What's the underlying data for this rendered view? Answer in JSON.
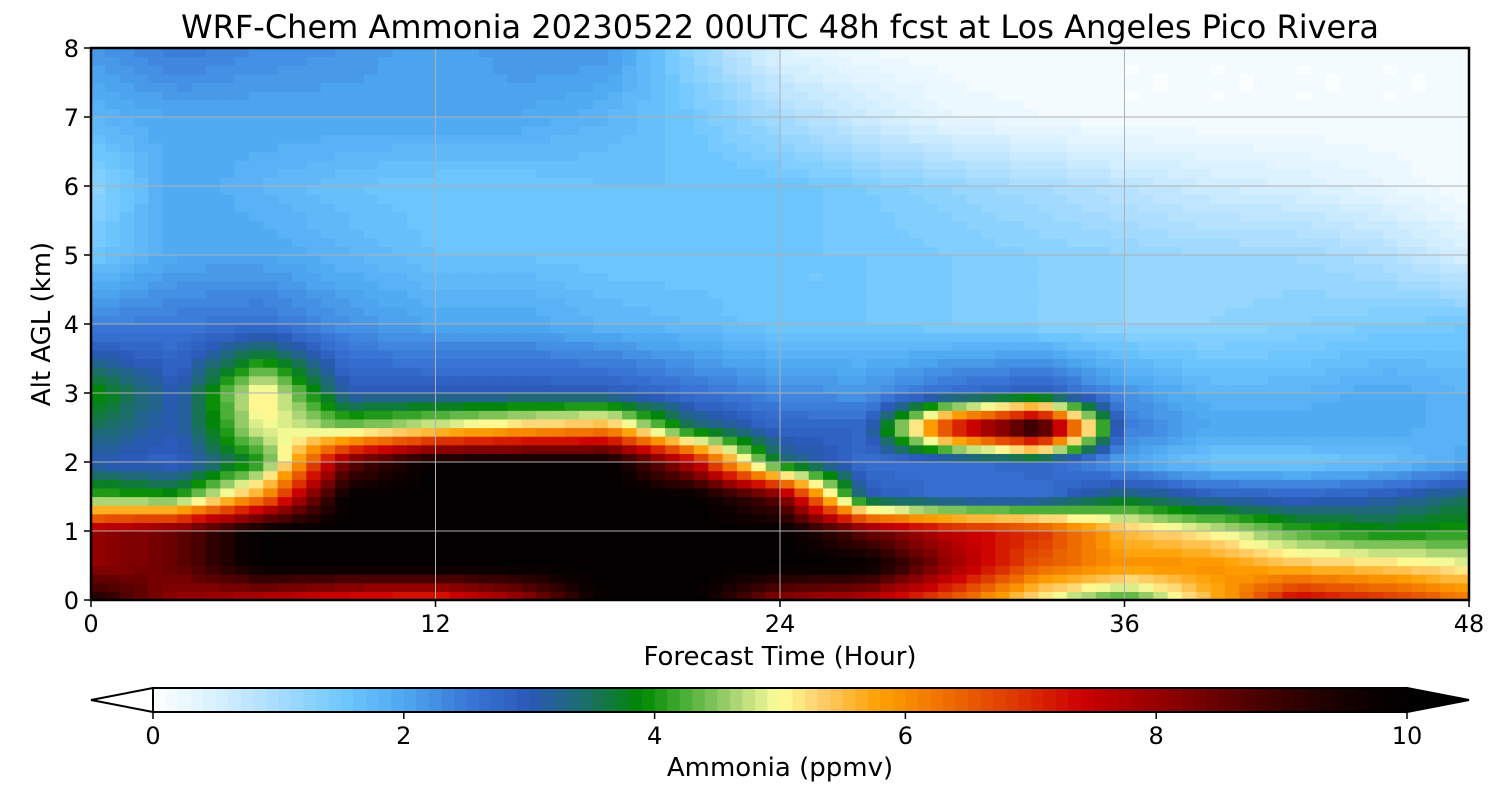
{
  "chart_data": {
    "type": "heatmap",
    "title": "WRF-Chem Ammonia  20230522 00UTC 48h fcst at Los Angeles Pico Rivera",
    "xlabel": "Forecast Time (Hour)",
    "ylabel": "Alt AGL (km)",
    "xlim": [
      0,
      48
    ],
    "ylim": [
      0,
      8
    ],
    "x_ticks": [
      "0",
      "12",
      "24",
      "36",
      "48"
    ],
    "y_ticks": [
      "0",
      "1",
      "2",
      "3",
      "4",
      "5",
      "6",
      "7",
      "8"
    ],
    "grid": true,
    "colorbar": {
      "label": "Ammonia  (ppmv)",
      "min": 0,
      "max": 10,
      "ticks": [
        "0",
        "2",
        "4",
        "6",
        "8",
        "10"
      ],
      "extend": "both",
      "levels": 100,
      "anchor_values": [
        0,
        0.5,
        1.0,
        1.5,
        2.0,
        2.5,
        3.0,
        3.5,
        3.9,
        4.2,
        4.6,
        5.0,
        5.3,
        5.8,
        6.3,
        6.8,
        7.4,
        7.8,
        8.4,
        9.0,
        9.6,
        10
      ],
      "anchor_colors": [
        "#ffffff",
        "#d8f0ff",
        "#a8dcff",
        "#70c8ff",
        "#4ea8f0",
        "#3a78d8",
        "#2a58b8",
        "#1a7060",
        "#008800",
        "#40aa30",
        "#a0d070",
        "#ffff99",
        "#ffd070",
        "#ffa000",
        "#f07000",
        "#e04000",
        "#cc0000",
        "#aa0000",
        "#700000",
        "#3a0000",
        "#100000",
        "#000000"
      ]
    },
    "x": [
      0,
      3,
      6,
      9,
      12,
      15,
      18,
      21,
      24,
      27,
      30,
      33,
      36,
      39,
      42,
      45,
      48
    ],
    "y": [
      0,
      0.5,
      1.0,
      1.5,
      2.0,
      2.5,
      3.0,
      4.0,
      5.0,
      6.0,
      7.0,
      8.0
    ],
    "z": [
      [
        9.5,
        8.0,
        7.5,
        7.0,
        6.8,
        7.8,
        10,
        10,
        8.0,
        7.5,
        6.5,
        5.0,
        4.0,
        5.5,
        7.5,
        7.0,
        6.3
      ],
      [
        8.0,
        8.5,
        10,
        10,
        10,
        10,
        10,
        10,
        10,
        10,
        8.0,
        6.5,
        6.0,
        6.0,
        5.5,
        5.3,
        5.0
      ],
      [
        8.0,
        8.5,
        10,
        10,
        10,
        10,
        10,
        10,
        10,
        8.5,
        7.5,
        7.0,
        5.5,
        5.0,
        4.2,
        3.9,
        4.0
      ],
      [
        4.2,
        4.0,
        6.0,
        10,
        10,
        10,
        10,
        10,
        8.5,
        3.0,
        2.6,
        2.6,
        3.5,
        3.0,
        2.8,
        3.0,
        3.5
      ],
      [
        3.0,
        2.8,
        4.0,
        8.5,
        10,
        10,
        10,
        7.5,
        3.5,
        2.6,
        2.6,
        2.8,
        2.0,
        1.5,
        1.5,
        1.6,
        2.0
      ],
      [
        3.5,
        3.0,
        5.0,
        4.5,
        5.0,
        5.5,
        5.8,
        3.5,
        2.8,
        2.8,
        7.5,
        10,
        2.5,
        2.0,
        2.0,
        2.0,
        1.8
      ],
      [
        4.0,
        3.0,
        5.3,
        3.0,
        3.0,
        3.0,
        3.0,
        2.6,
        2.3,
        2.2,
        2.7,
        3.0,
        2.2,
        1.8,
        1.8,
        2.0,
        1.8
      ],
      [
        2.4,
        2.5,
        2.6,
        2.2,
        2.0,
        2.0,
        1.8,
        1.7,
        1.5,
        1.5,
        1.4,
        1.3,
        1.2,
        1.2,
        1.3,
        1.4,
        1.5
      ],
      [
        1.5,
        2.0,
        2.0,
        1.8,
        1.6,
        1.6,
        1.5,
        1.5,
        1.5,
        1.5,
        1.4,
        1.3,
        1.2,
        1.1,
        1.1,
        0.9,
        0.5
      ],
      [
        1.2,
        2.0,
        1.8,
        1.6,
        1.5,
        1.5,
        1.6,
        1.6,
        1.6,
        1.4,
        1.2,
        1.0,
        0.8,
        0.6,
        0.5,
        0.3,
        0.1
      ],
      [
        1.8,
        2.0,
        2.0,
        2.0,
        2.0,
        2.0,
        1.8,
        1.5,
        1.0,
        0.6,
        0.3,
        0.2,
        0.1,
        0.1,
        0.1,
        0.1,
        0.1
      ],
      [
        2.2,
        2.5,
        2.3,
        2.2,
        2.0,
        2.2,
        2.2,
        1.2,
        0.4,
        0.2,
        0.1,
        0.1,
        0.1,
        0.1,
        0.1,
        0.1,
        0.1
      ]
    ]
  }
}
